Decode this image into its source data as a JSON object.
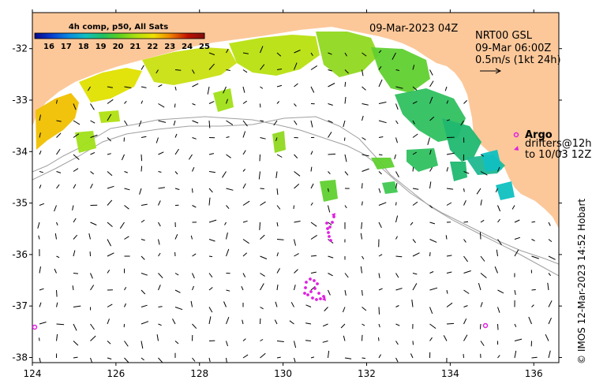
{
  "colorbar": {
    "title": "4h comp, p50, All Sats",
    "ticks": [
      "16",
      "17",
      "18",
      "19",
      "20",
      "21",
      "22",
      "23",
      "24",
      "25"
    ],
    "colors": [
      "#08088a",
      "#0a3fd0",
      "#0a8ae0",
      "#10c0c0",
      "#20c060",
      "#60d020",
      "#b0e010",
      "#f0e000",
      "#f08000",
      "#c01000",
      "#801010"
    ]
  },
  "header": {
    "date": "09-Mar-2023 04Z",
    "product": "NRT00 GSL",
    "vector_time": "09-Mar 06:00Z",
    "scale_label": "0.5m/s (1kt 24h)"
  },
  "legend": {
    "argo_label": "Argo",
    "drifters_line1": "drifters@12h",
    "drifters_line2": "to 10/03 12Z",
    "argo_color": "#e020e0"
  },
  "credit": "© IMOS 12-Mar-2023 14:52 Hobart",
  "axes": {
    "x_ticks": [
      124,
      126,
      128,
      130,
      132,
      134,
      136
    ],
    "y_ticks": [
      -32,
      -33,
      -34,
      -35,
      -36,
      -37,
      -38
    ],
    "x_range": [
      124,
      136.6
    ],
    "y_range": [
      -38.1,
      -31.3
    ]
  },
  "colors": {
    "land": "#fcc89a",
    "sea": "#ffffff",
    "contour": "#a0a0a0"
  }
}
